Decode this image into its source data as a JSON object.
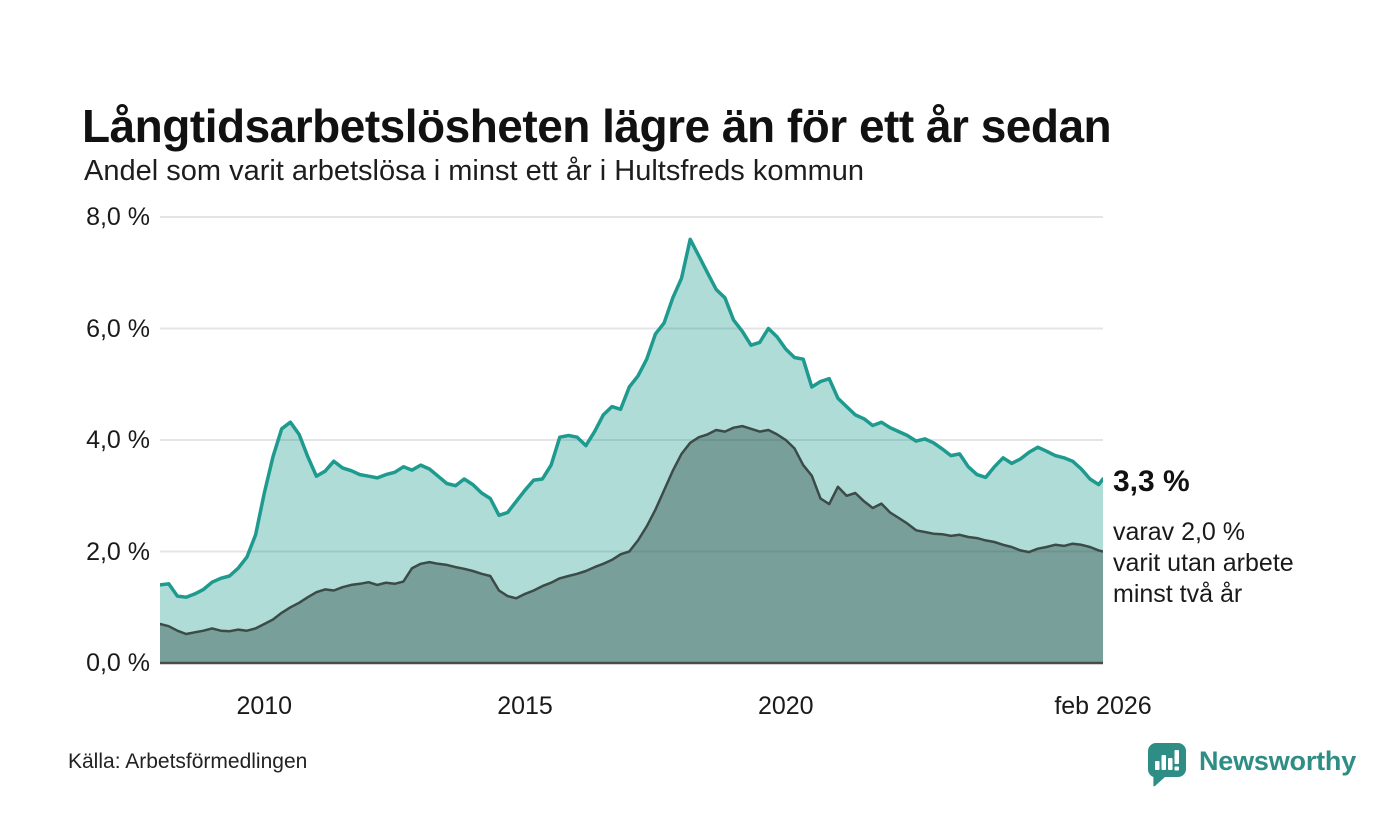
{
  "title": "Långtidsarbetslösheten lägre än för ett år sedan",
  "subtitle": "Andel som varit arbetslösa i minst ett år i Hultsfreds kommun",
  "source": "Källa: Arbetsförmedlingen",
  "branding": {
    "name": "Newsworthy",
    "color": "#2E8E85"
  },
  "annotations": {
    "total_label": "3,3 %",
    "sub_label_lines": [
      "varav 2,0 %",
      "varit utan arbete",
      "minst två år"
    ]
  },
  "axes": {
    "y_ticks": [
      {
        "value": 8,
        "label": "8,0 %"
      },
      {
        "value": 6,
        "label": "6,0 %"
      },
      {
        "value": 4,
        "label": "4,0 %"
      },
      {
        "value": 2,
        "label": "2,0 %"
      },
      {
        "value": 0,
        "label": "0,0 %"
      }
    ],
    "x_ticks": [
      {
        "month": 24,
        "label": "2010"
      },
      {
        "month": 84,
        "label": "2015"
      },
      {
        "month": 144,
        "label": "2020"
      },
      {
        "month": 217,
        "label": "feb 2026"
      }
    ]
  },
  "chart_data": {
    "type": "area",
    "x_start": "2008-01",
    "x_end": "2026-02",
    "x_step_months": 2,
    "total_months": 217,
    "ylim": [
      0,
      8
    ],
    "y_gridlines": [
      2,
      4,
      6,
      8
    ],
    "grid_color": "#e4e4e4",
    "baseline_color": "#4a4a4a",
    "series": [
      {
        "name": "Andel arbetslösa minst ett år",
        "line_color": "#1E9A8E",
        "fill_color": "rgba(30,154,142,0.35)",
        "line_width": 3.5,
        "latest_value": 3.3,
        "values": [
          1.4,
          1.42,
          1.2,
          1.18,
          1.24,
          1.32,
          1.45,
          1.52,
          1.56,
          1.7,
          1.9,
          2.3,
          3.05,
          3.7,
          4.2,
          4.32,
          4.1,
          3.7,
          3.35,
          3.44,
          3.62,
          3.5,
          3.45,
          3.38,
          3.35,
          3.32,
          3.38,
          3.42,
          3.52,
          3.46,
          3.55,
          3.48,
          3.35,
          3.22,
          3.18,
          3.3,
          3.2,
          3.05,
          2.95,
          2.65,
          2.7,
          2.9,
          3.1,
          3.28,
          3.3,
          3.55,
          4.05,
          4.08,
          4.05,
          3.9,
          4.15,
          4.45,
          4.6,
          4.55,
          4.95,
          5.15,
          5.45,
          5.9,
          6.1,
          6.55,
          6.9,
          7.6,
          7.3,
          7.0,
          6.7,
          6.55,
          6.15,
          5.95,
          5.7,
          5.75,
          6.0,
          5.85,
          5.63,
          5.48,
          5.45,
          4.95,
          5.05,
          5.1,
          4.75,
          4.6,
          4.45,
          4.38,
          4.26,
          4.32,
          4.22,
          4.15,
          4.08,
          3.98,
          4.02,
          3.95,
          3.84,
          3.72,
          3.75,
          3.52,
          3.38,
          3.33,
          3.52,
          3.68,
          3.58,
          3.66,
          3.78,
          3.87,
          3.8,
          3.72,
          3.68,
          3.62,
          3.48,
          3.3,
          3.2,
          3.3
        ]
      },
      {
        "name": "Varav utan arbete minst två år",
        "line_color": "#3C4B47",
        "fill_color": "rgba(38,68,62,0.40)",
        "line_width": 2.5,
        "latest_value": 2.0,
        "values": [
          0.7,
          0.66,
          0.58,
          0.52,
          0.55,
          0.58,
          0.62,
          0.58,
          0.57,
          0.6,
          0.58,
          0.62,
          0.7,
          0.78,
          0.9,
          1.0,
          1.08,
          1.18,
          1.27,
          1.32,
          1.3,
          1.36,
          1.4,
          1.42,
          1.45,
          1.4,
          1.44,
          1.42,
          1.46,
          1.7,
          1.78,
          1.81,
          1.78,
          1.76,
          1.72,
          1.69,
          1.65,
          1.6,
          1.56,
          1.3,
          1.2,
          1.16,
          1.24,
          1.3,
          1.38,
          1.44,
          1.52,
          1.56,
          1.6,
          1.65,
          1.72,
          1.78,
          1.85,
          1.95,
          2.0,
          2.2,
          2.45,
          2.75,
          3.1,
          3.45,
          3.75,
          3.95,
          4.05,
          4.1,
          4.18,
          4.15,
          4.22,
          4.25,
          4.2,
          4.15,
          4.18,
          4.1,
          4.0,
          3.85,
          3.55,
          3.36,
          2.95,
          2.85,
          3.16,
          3.0,
          3.05,
          2.9,
          2.78,
          2.86,
          2.7,
          2.6,
          2.5,
          2.38,
          2.35,
          2.32,
          2.31,
          2.28,
          2.3,
          2.26,
          2.24,
          2.2,
          2.17,
          2.12,
          2.08,
          2.02,
          1.99,
          2.05,
          2.08,
          2.12,
          2.1,
          2.14,
          2.12,
          2.08,
          2.02,
          2.0
        ]
      }
    ]
  }
}
